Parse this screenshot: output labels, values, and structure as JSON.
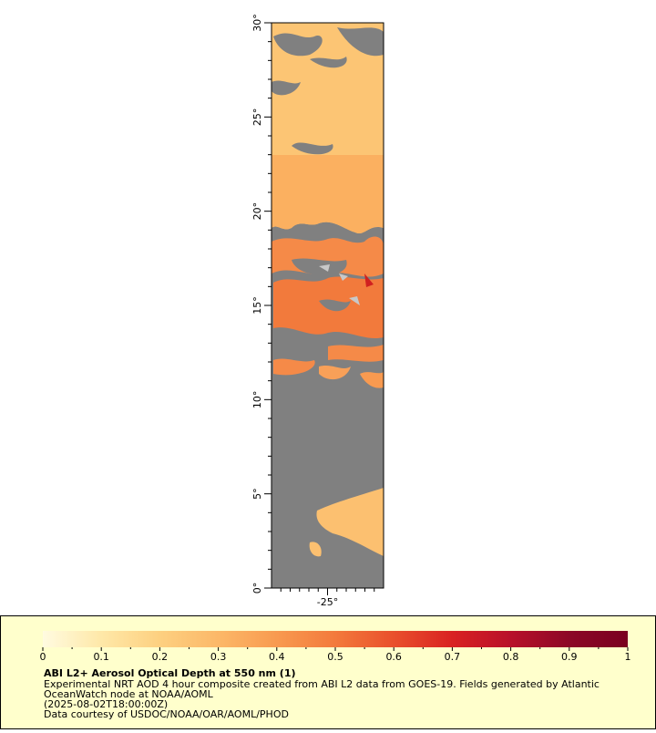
{
  "chart_data": {
    "type": "map",
    "xlim": [
      -28,
      -22
    ],
    "ylim": [
      0,
      30
    ],
    "xticks": [
      {
        "value": -25,
        "label": "-25°"
      }
    ],
    "yticks": [
      {
        "value": 0,
        "label": "0°"
      },
      {
        "value": 5,
        "label": "5°"
      },
      {
        "value": 10,
        "label": "10°"
      },
      {
        "value": 15,
        "label": "15°"
      },
      {
        "value": 20,
        "label": "20°"
      },
      {
        "value": 25,
        "label": "25°"
      },
      {
        "value": 30,
        "label": "30°"
      }
    ],
    "y_minor_ticks": [
      1,
      2,
      3,
      4,
      6,
      7,
      8,
      9,
      11,
      12,
      13,
      14,
      16,
      17,
      18,
      19,
      21,
      22,
      23,
      24,
      26,
      27,
      28,
      29
    ],
    "x_minor_ticks": [
      -27.5,
      -27,
      -26.5,
      -26,
      -25.5,
      -24.5,
      -24,
      -23.5,
      -23,
      -22.5
    ],
    "colorbar": {
      "lim": [
        0,
        1
      ],
      "ticks": [
        0,
        0.1,
        0.2,
        0.3,
        0.4,
        0.5,
        0.6,
        0.7,
        0.8,
        0.9,
        1
      ],
      "minor_ticks": [
        0.05,
        0.15,
        0.25,
        0.35,
        0.45,
        0.55,
        0.65,
        0.75,
        0.85,
        0.95
      ],
      "colors": [
        "#fffbe0",
        "#fee8a8",
        "#fdd080",
        "#fcb868",
        "#f89a50",
        "#f37a3c",
        "#e9502c",
        "#d92222",
        "#b8102a",
        "#8c0826",
        "#7a0020"
      ]
    },
    "title": "ABI L2+ Aerosol Optical Depth at 550 nm (1)",
    "caption": [
      "Experimental NRT AOD 4 hour composite created from ABI L2 data from GOES-19. Fields generated by Atlantic",
      "OceanWatch node at NOAA/AOML",
      "(2025-08-02T18:00:00Z)",
      "Data courtesy of USDOC/NOAA/OAR/AOML/PHOD"
    ]
  }
}
